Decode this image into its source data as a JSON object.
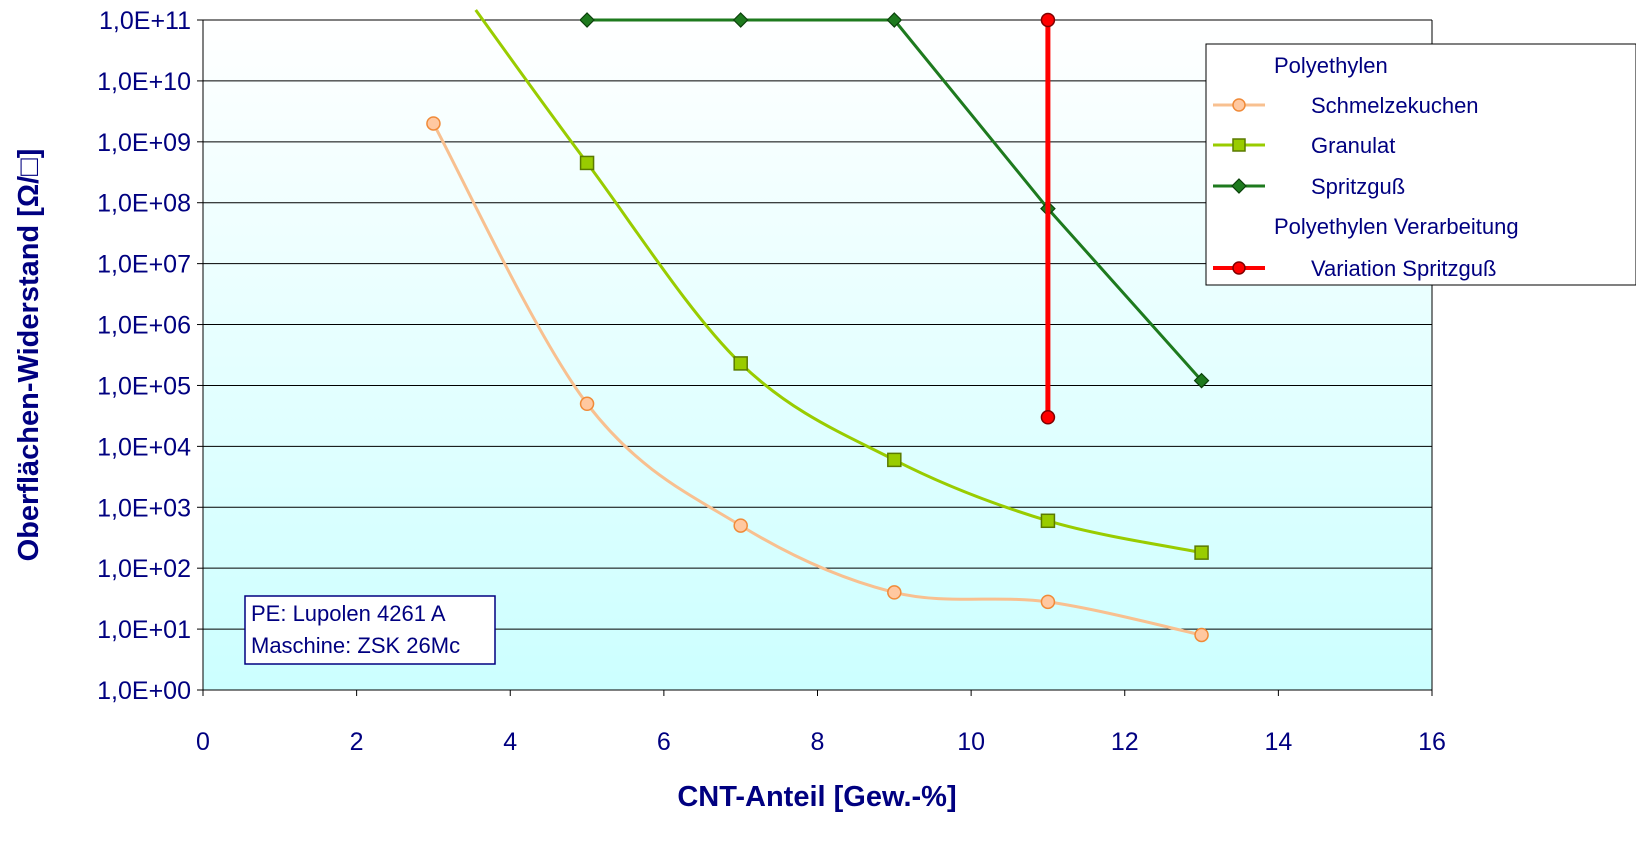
{
  "chart_data": {
    "type": "line",
    "title": "",
    "xlabel": "CNT-Anteil [Gew.-%]",
    "ylabel": "Oberflächen-Widerstand [Ω/□]",
    "y_scale": "log10",
    "xlim": [
      0,
      16
    ],
    "ylim": [
      1,
      100000000000
    ],
    "x_ticks": [
      0,
      2,
      4,
      6,
      8,
      10,
      12,
      14,
      16
    ],
    "x_tick_labels": [
      "0",
      "2",
      "4",
      "6",
      "8",
      "10",
      "12",
      "14",
      "16"
    ],
    "y_tick_labels": [
      "1,0E+00",
      "1,0E+01",
      "1,0E+02",
      "1,0E+03",
      "1,0E+04",
      "1,0E+05",
      "1,0E+06",
      "1,0E+07",
      "1,0E+08",
      "1,0E+09",
      "1,0E+10",
      "1,0E+11"
    ],
    "grid": "horizontal",
    "background": "gradient white to light cyan",
    "legend_position": "top-right",
    "legend": {
      "groups": [
        {
          "title": "Polyethylen",
          "entries": [
            "Schmelzekuchen",
            "Granulat",
            "Spritzguß"
          ]
        },
        {
          "title": "Polyethylen Verarbeitung",
          "entries": [
            "Variation Spritzguß"
          ]
        }
      ]
    },
    "annotation": [
      "PE: Lupolen 4261 A",
      "Maschine: ZSK 26Mc"
    ],
    "series": [
      {
        "name": "Schmelzekuchen",
        "color": "#F8C090",
        "marker": "circle",
        "marker_fill": "#FFC8A0",
        "marker_edge": "#F08A38",
        "x": [
          3,
          5,
          7,
          9,
          11,
          13
        ],
        "y": [
          2000000000,
          50000,
          500,
          40,
          28,
          8
        ]
      },
      {
        "name": "Granulat",
        "color": "#99CC00",
        "marker": "square",
        "marker_fill": "#99CC00",
        "marker_edge": "#5A7A00",
        "x": [
          5,
          7,
          9,
          11,
          13
        ],
        "y": [
          450000000,
          230000,
          6000,
          600,
          180
        ],
        "extends_to_top_edge_at_x": 3.55
      },
      {
        "name": "Spritzguß",
        "color": "#1E7A1E",
        "marker": "diamond",
        "marker_fill": "#1E7A1E",
        "marker_edge": "#0A400A",
        "x": [
          5,
          7,
          9,
          11,
          13
        ],
        "y": [
          100000000000,
          100000000000,
          100000000000,
          80000000,
          120000
        ]
      },
      {
        "name": "Variation Spritzguß",
        "color": "#FF0000",
        "marker": "circle",
        "marker_fill": "#FF0000",
        "marker_edge": "#800000",
        "x": [
          11,
          11
        ],
        "y": [
          30000,
          100000000000
        ]
      }
    ]
  }
}
